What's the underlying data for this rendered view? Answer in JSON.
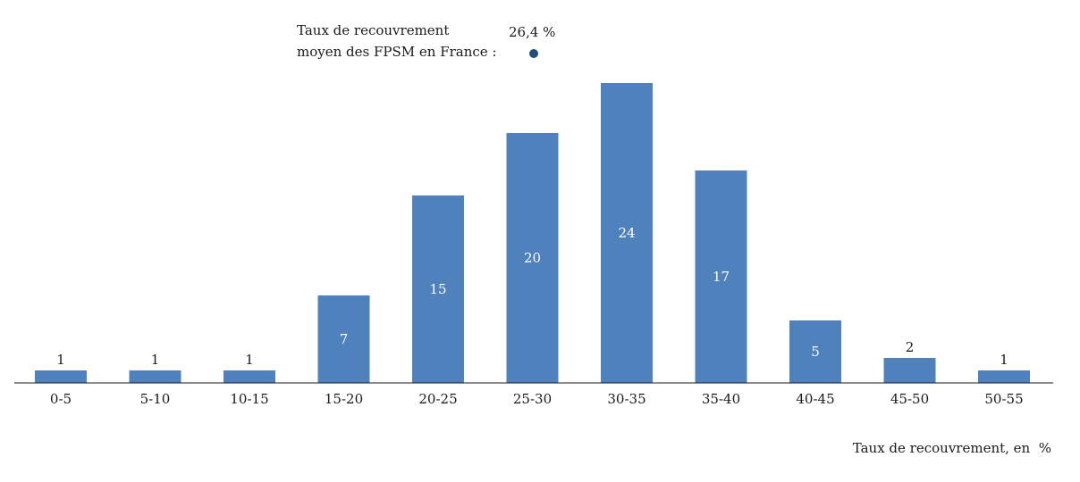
{
  "chart_data": {
    "type": "bar",
    "categories": [
      "0-5",
      "5-10",
      "10-15",
      "15-20",
      "20-25",
      "25-30",
      "30-35",
      "35-40",
      "40-45",
      "45-50",
      "50-55"
    ],
    "values": [
      1,
      1,
      1,
      7,
      15,
      20,
      24,
      17,
      5,
      2,
      1
    ],
    "xlabel": "Taux de recouvrement, en  %",
    "ylabel": "",
    "ylim": [
      0,
      24
    ],
    "grid": false,
    "bar_color": "#4f81bd",
    "annotation": {
      "line1": "Taux de recouvrement",
      "line2": "moyen des FPSM en France :",
      "value": "26,4 %",
      "marker_color": "#1f4e79"
    }
  }
}
